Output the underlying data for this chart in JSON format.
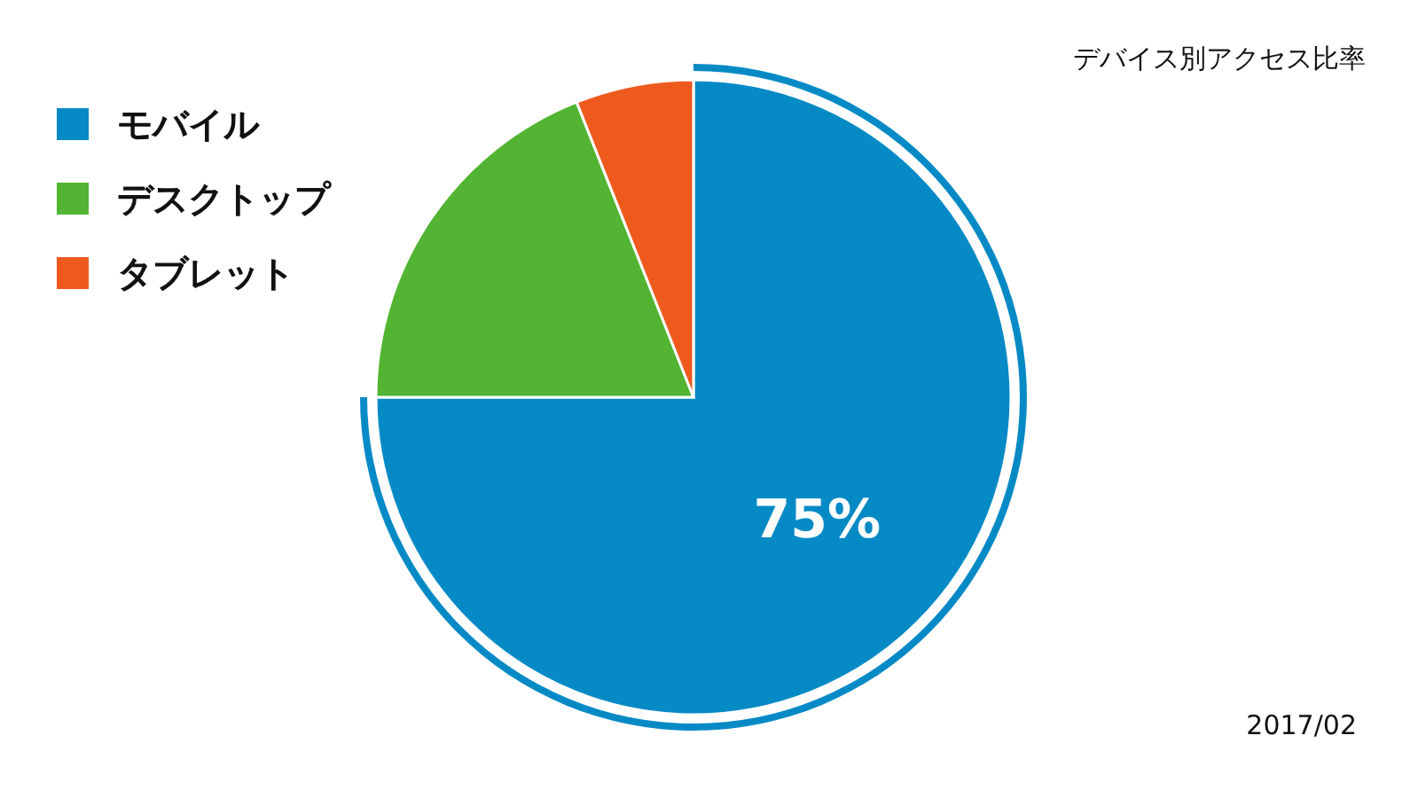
{
  "chart_data": {
    "type": "pie",
    "title": "デバイス別アクセス比率",
    "categories": [
      "モバイル",
      "デスクトップ",
      "タブレット"
    ],
    "values": [
      75,
      19,
      6
    ],
    "colors": [
      "#068ac6",
      "#52b432",
      "#ee5a1e"
    ],
    "value_labels": [
      "75%",
      null,
      null
    ],
    "legend": "top left",
    "annotations": [
      "2017/02"
    ]
  }
}
